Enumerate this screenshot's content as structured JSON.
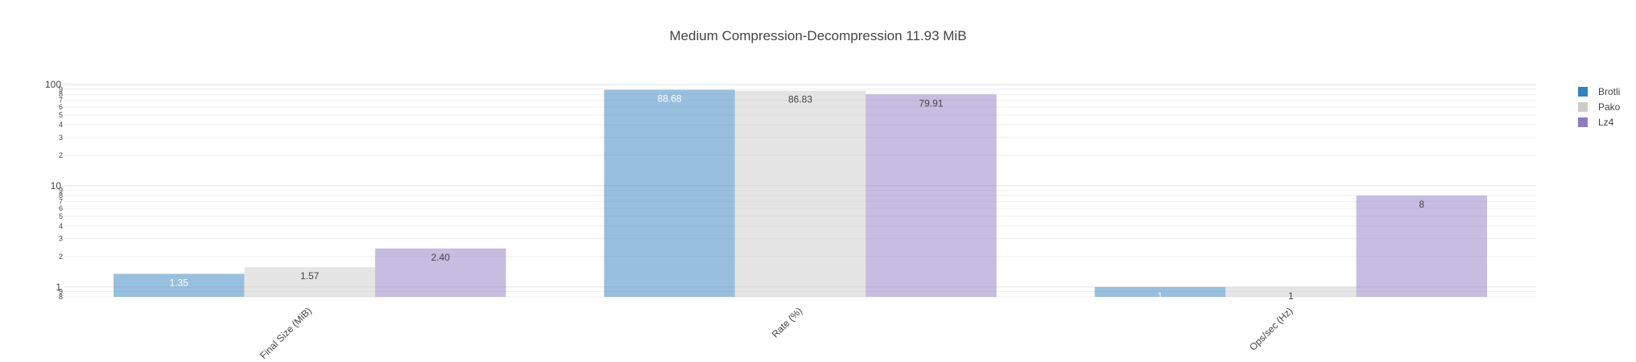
{
  "chart_data": {
    "type": "bar",
    "title": "Medium Compression-Decompression 11.93 MiB",
    "xlabel": "",
    "ylabel": "",
    "y_scale": "log",
    "ylim": [
      0.8,
      100
    ],
    "y_major_ticks": [
      {
        "value": 1,
        "label": "1"
      },
      {
        "value": 10,
        "label": "10"
      },
      {
        "value": 100,
        "label": "100"
      }
    ],
    "y_minor_ticks": [
      {
        "value": 0.8,
        "label": "8"
      },
      {
        "value": 0.9,
        "label": "9"
      },
      {
        "value": 2,
        "label": "2"
      },
      {
        "value": 3,
        "label": "3"
      },
      {
        "value": 4,
        "label": "4"
      },
      {
        "value": 5,
        "label": "5"
      },
      {
        "value": 6,
        "label": "6"
      },
      {
        "value": 7,
        "label": "7"
      },
      {
        "value": 8,
        "label": "8"
      },
      {
        "value": 9,
        "label": "9"
      },
      {
        "value": 20,
        "label": "2"
      },
      {
        "value": 30,
        "label": "3"
      },
      {
        "value": 40,
        "label": "4"
      },
      {
        "value": 50,
        "label": "5"
      },
      {
        "value": 60,
        "label": "6"
      },
      {
        "value": 70,
        "label": "7"
      },
      {
        "value": 80,
        "label": "8"
      },
      {
        "value": 90,
        "label": "9"
      }
    ],
    "categories": [
      "Final Size (MiB)",
      "Rate (%)",
      "Ops/sec (Hz)"
    ],
    "series": [
      {
        "name": "Brotli",
        "color": "#3182bd",
        "values": [
          1.35,
          88.68,
          1
        ],
        "labels": [
          "1.35",
          "88.68",
          "1"
        ]
      },
      {
        "name": "Pako",
        "color": "#cccccc",
        "values": [
          1.57,
          86.83,
          1
        ],
        "labels": [
          "1.57",
          "86.83",
          "1"
        ]
      },
      {
        "name": "Lz4",
        "color": "#8e7cc3",
        "values": [
          2.4,
          79.91,
          8
        ],
        "labels": [
          "2.40",
          "79.91",
          "8"
        ]
      }
    ],
    "grid": true,
    "legend_position": "top-right"
  }
}
